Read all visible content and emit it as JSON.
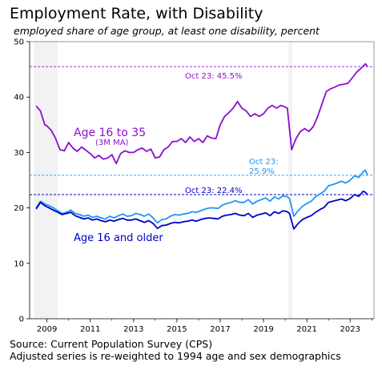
{
  "title": "Employment Rate, with Disability",
  "subtitle": "employed share of age group, at least one disability, percent",
  "footer": {
    "line1": "Source: Current Population Survey (CPS)",
    "line2": "Adjusted series is re-weighted to 1994 age and sex demographics"
  },
  "colors": {
    "age16to35": "#8a0fd1",
    "adjusted": "#2196f3",
    "age16older": "#0000c8",
    "recession": "#f2f2f2"
  },
  "chart_data": {
    "type": "line",
    "xlabel": "",
    "ylabel": "",
    "xlim": [
      2008.2,
      2024.1
    ],
    "ylim": [
      0,
      50
    ],
    "x_ticks": [
      2009,
      2011,
      2013,
      2015,
      2017,
      2019,
      2021,
      2023
    ],
    "y_ticks": [
      0,
      10,
      20,
      30,
      40,
      50
    ],
    "grid": false,
    "recessions": [
      [
        2008.4,
        2009.5
      ],
      [
        2020.15,
        2020.33
      ]
    ],
    "reference_lines": [
      {
        "series": "age16to35",
        "value": 45.5,
        "label": "Oct 23: 45.5%"
      },
      {
        "series": "adjusted",
        "value": 25.9,
        "label_line1": "Oct 23:",
        "label_line2": "25.9%"
      },
      {
        "series": "age16older",
        "value": 22.4,
        "label": "Oct 23: 22.4%"
      }
    ],
    "series_labels": {
      "age16to35": "Age 16 to 35",
      "age16to35_note": "(3M MA)",
      "age16older": "Age 16 and older"
    },
    "series": [
      {
        "key": "age16to35",
        "x": [
          2008.5,
          2008.7,
          2008.9,
          2009.0,
          2009.2,
          2009.4,
          2009.6,
          2009.8,
          2010.0,
          2010.2,
          2010.4,
          2010.6,
          2010.8,
          2011.0,
          2011.2,
          2011.4,
          2011.6,
          2011.8,
          2012.0,
          2012.2,
          2012.4,
          2012.6,
          2012.8,
          2013.0,
          2013.2,
          2013.4,
          2013.6,
          2013.8,
          2014.0,
          2014.2,
          2014.4,
          2014.6,
          2014.8,
          2015.0,
          2015.2,
          2015.4,
          2015.6,
          2015.8,
          2016.0,
          2016.2,
          2016.4,
          2016.6,
          2016.8,
          2017.0,
          2017.2,
          2017.4,
          2017.6,
          2017.8,
          2018.0,
          2018.2,
          2018.4,
          2018.6,
          2018.8,
          2019.0,
          2019.2,
          2019.4,
          2019.6,
          2019.8,
          2020.0,
          2020.1,
          2020.3,
          2020.5,
          2020.7,
          2020.9,
          2021.1,
          2021.3,
          2021.5,
          2021.7,
          2021.9,
          2022.1,
          2022.3,
          2022.5,
          2022.7,
          2022.9,
          2023.1,
          2023.3,
          2023.5,
          2023.7,
          2023.8
        ],
        "values": [
          38.4,
          37.5,
          35.0,
          34.8,
          34.0,
          32.5,
          30.5,
          30.3,
          31.8,
          30.8,
          30.2,
          31.0,
          30.4,
          29.8,
          29.0,
          29.5,
          28.8,
          29.0,
          29.6,
          28.0,
          29.8,
          30.3,
          30.0,
          30.0,
          30.5,
          30.8,
          30.2,
          30.6,
          29.0,
          29.2,
          30.5,
          31.0,
          32.0,
          32.0,
          32.5,
          31.8,
          32.8,
          32.0,
          32.5,
          31.8,
          33.0,
          32.6,
          32.5,
          35.0,
          36.5,
          37.2,
          38.0,
          39.2,
          38.0,
          37.5,
          36.5,
          37.0,
          36.5,
          37.0,
          38.0,
          38.5,
          38.0,
          38.5,
          38.2,
          38.0,
          30.5,
          32.5,
          33.8,
          34.3,
          33.8,
          34.7,
          36.5,
          38.8,
          41.0,
          41.5,
          41.8,
          42.2,
          42.3,
          42.5,
          43.5,
          44.5,
          45.2,
          46.0,
          45.5
        ]
      },
      {
        "key": "adjusted",
        "x": [
          2008.5,
          2008.7,
          2008.9,
          2009.1,
          2009.3,
          2009.5,
          2009.7,
          2009.9,
          2010.1,
          2010.3,
          2010.5,
          2010.7,
          2010.9,
          2011.1,
          2011.3,
          2011.5,
          2011.7,
          2011.9,
          2012.1,
          2012.3,
          2012.5,
          2012.7,
          2012.9,
          2013.1,
          2013.3,
          2013.5,
          2013.7,
          2013.9,
          2014.1,
          2014.3,
          2014.5,
          2014.7,
          2014.9,
          2015.1,
          2015.3,
          2015.5,
          2015.7,
          2015.9,
          2016.1,
          2016.3,
          2016.5,
          2016.7,
          2016.9,
          2017.1,
          2017.3,
          2017.5,
          2017.7,
          2017.9,
          2018.1,
          2018.3,
          2018.5,
          2018.7,
          2018.9,
          2019.1,
          2019.3,
          2019.5,
          2019.7,
          2019.9,
          2020.1,
          2020.2,
          2020.4,
          2020.6,
          2020.8,
          2021.0,
          2021.2,
          2021.4,
          2021.6,
          2021.8,
          2022.0,
          2022.2,
          2022.4,
          2022.6,
          2022.8,
          2023.0,
          2023.2,
          2023.4,
          2023.6,
          2023.7,
          2023.8
        ],
        "values": [
          20.0,
          21.2,
          20.7,
          20.4,
          20.0,
          19.5,
          19.0,
          19.2,
          19.6,
          19.0,
          18.8,
          18.5,
          18.7,
          18.3,
          18.5,
          18.2,
          18.0,
          18.5,
          18.2,
          18.6,
          18.9,
          18.5,
          18.6,
          19.0,
          18.8,
          18.5,
          18.9,
          18.2,
          17.3,
          17.9,
          18.0,
          18.5,
          18.8,
          18.7,
          18.9,
          19.0,
          19.3,
          19.2,
          19.5,
          19.8,
          20.0,
          20.0,
          19.9,
          20.5,
          20.8,
          21.0,
          21.3,
          21.0,
          21.0,
          21.5,
          20.7,
          21.2,
          21.5,
          21.8,
          21.2,
          22.0,
          21.6,
          22.2,
          22.0,
          21.7,
          18.5,
          19.5,
          20.3,
          20.8,
          21.2,
          22.0,
          22.5,
          23.0,
          24.0,
          24.2,
          24.5,
          24.8,
          24.5,
          25.0,
          25.8,
          25.5,
          26.5,
          26.8,
          25.9
        ]
      },
      {
        "key": "age16older",
        "x": [
          2008.5,
          2008.7,
          2008.9,
          2009.1,
          2009.3,
          2009.5,
          2009.7,
          2009.9,
          2010.1,
          2010.3,
          2010.5,
          2010.7,
          2010.9,
          2011.1,
          2011.3,
          2011.5,
          2011.7,
          2011.9,
          2012.1,
          2012.3,
          2012.5,
          2012.7,
          2012.9,
          2013.1,
          2013.3,
          2013.5,
          2013.7,
          2013.9,
          2014.1,
          2014.3,
          2014.5,
          2014.7,
          2014.9,
          2015.1,
          2015.3,
          2015.5,
          2015.7,
          2015.9,
          2016.1,
          2016.3,
          2016.5,
          2016.7,
          2016.9,
          2017.1,
          2017.3,
          2017.5,
          2017.7,
          2017.9,
          2018.1,
          2018.3,
          2018.5,
          2018.7,
          2018.9,
          2019.1,
          2019.3,
          2019.5,
          2019.7,
          2019.9,
          2020.1,
          2020.2,
          2020.4,
          2020.6,
          2020.8,
          2021.0,
          2021.2,
          2021.4,
          2021.6,
          2021.8,
          2022.0,
          2022.2,
          2022.4,
          2022.6,
          2022.8,
          2023.0,
          2023.2,
          2023.4,
          2023.6,
          2023.7,
          2023.8
        ],
        "values": [
          19.8,
          21.0,
          20.4,
          20.0,
          19.6,
          19.2,
          18.8,
          19.0,
          19.2,
          18.6,
          18.3,
          18.0,
          18.2,
          17.8,
          18.0,
          17.7,
          17.5,
          17.8,
          17.6,
          17.9,
          18.1,
          17.8,
          17.8,
          18.0,
          17.7,
          17.4,
          17.7,
          17.2,
          16.3,
          16.8,
          16.9,
          17.2,
          17.4,
          17.3,
          17.5,
          17.6,
          17.8,
          17.6,
          17.9,
          18.1,
          18.2,
          18.1,
          18.0,
          18.5,
          18.7,
          18.8,
          19.0,
          18.7,
          18.6,
          19.0,
          18.3,
          18.7,
          18.9,
          19.1,
          18.6,
          19.3,
          19.0,
          19.5,
          19.3,
          19.0,
          16.2,
          17.2,
          17.9,
          18.3,
          18.6,
          19.2,
          19.7,
          20.1,
          21.0,
          21.2,
          21.4,
          21.6,
          21.3,
          21.7,
          22.4,
          22.1,
          23.0,
          22.8,
          22.4
        ]
      }
    ]
  }
}
